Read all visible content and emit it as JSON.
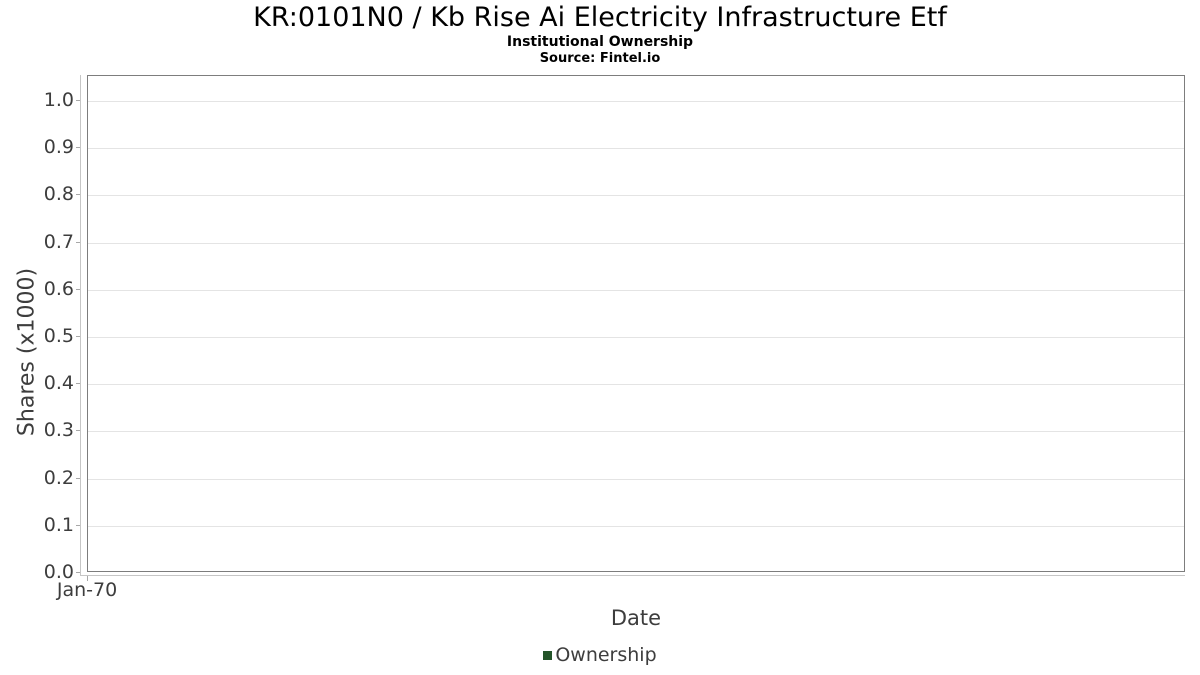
{
  "header": {
    "title": "KR:0101N0 / Kb Rise Ai Electricity Infrastructure Etf",
    "subtitle": "Institutional Ownership",
    "source": "Source: Fintel.io"
  },
  "chart_data": {
    "type": "line",
    "title": "KR:0101N0 / Kb Rise Ai Electricity Infrastructure Etf",
    "subtitle": "Institutional Ownership",
    "source_note": "Source: Fintel.io",
    "xlabel": "Date",
    "ylabel": "Shares (x1000)",
    "ylim": [
      0.0,
      1.053
    ],
    "yticks": [
      0.0,
      0.1,
      0.2,
      0.3,
      0.4,
      0.5,
      0.6,
      0.7,
      0.8,
      0.9,
      1.0
    ],
    "ytick_labels": [
      "0.0",
      "0.1",
      "0.2",
      "0.3",
      "0.4",
      "0.5",
      "0.6",
      "0.7",
      "0.8",
      "0.9",
      "1.0"
    ],
    "xtick_labels": [
      "Jan-70"
    ],
    "grid": "horizontal-only",
    "legend_position": "bottom-center",
    "series": [
      {
        "name": "Ownership",
        "color": "#235429",
        "x": [],
        "values": []
      }
    ]
  },
  "colors": {
    "series_green": "#235429",
    "plot_border": "#7d7d7d",
    "gridline": "#e4e4e4",
    "axis_line": "#c6c6c6",
    "tick_text": "#3d3d3d",
    "title_text": "#000000",
    "background": "#ffffff"
  }
}
